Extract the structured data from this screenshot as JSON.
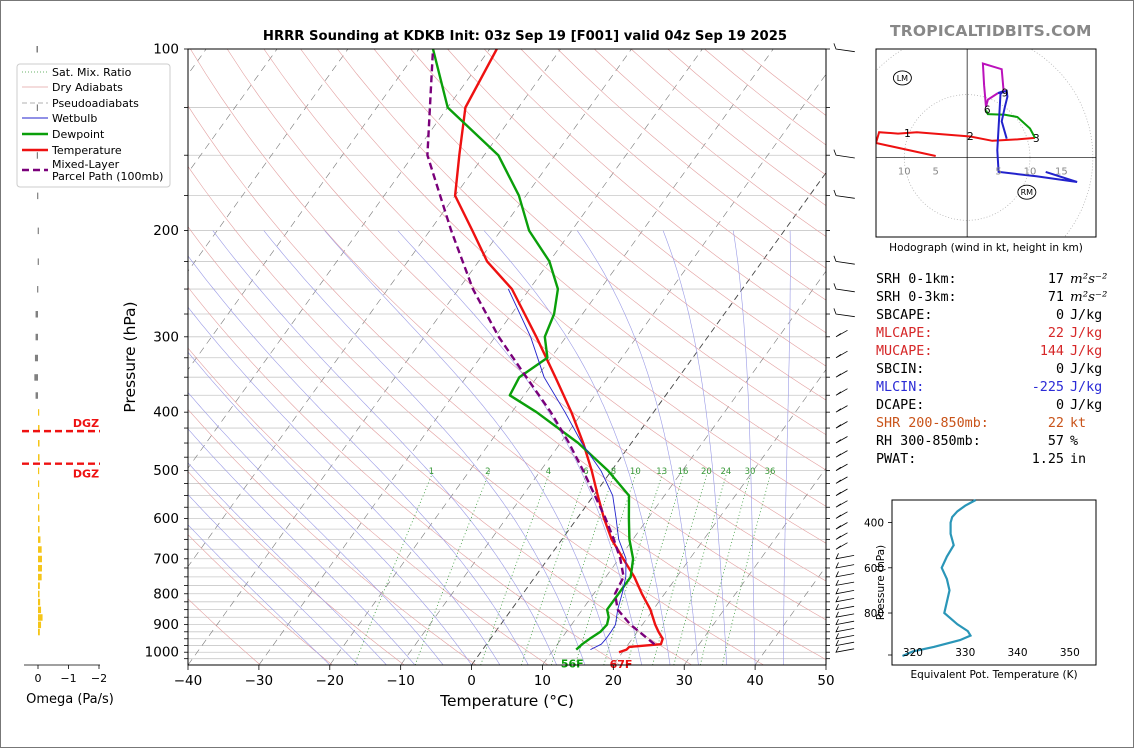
{
  "brand": "TROPICALTIDBITS.COM",
  "chart_data": [
    {
      "type": "line",
      "name": "skew-t",
      "title": "HRRR Sounding at KDKB Init: 03z Sep 19 [F001] valid 04z Sep 19 2025",
      "xlabel": "Temperature (°C)",
      "ylabel": "Pressure (hPa)",
      "xlim": [
        -40,
        50
      ],
      "ylim": [
        1050,
        100
      ],
      "skew": 0.72,
      "x_ticks": [
        -40,
        -30,
        -20,
        -10,
        0,
        10,
        20,
        30,
        40,
        50
      ],
      "x_tick_labels": [
        "−40",
        "−30",
        "−20",
        "−10",
        "0",
        "10",
        "20",
        "30",
        "40",
        "50"
      ],
      "y_ticks": [
        1000,
        900,
        800,
        700,
        600,
        500,
        400,
        300,
        200,
        100
      ],
      "grid_pressures": [
        100,
        125,
        150,
        175,
        200,
        225,
        250,
        275,
        300,
        325,
        350,
        375,
        400,
        425,
        450,
        475,
        500,
        525,
        550,
        575,
        600,
        625,
        650,
        675,
        700,
        725,
        750,
        775,
        800,
        825,
        850,
        875,
        900,
        925,
        950,
        975,
        1000,
        1025
      ],
      "mixing_ratio_labels": [
        "1",
        "2",
        "4",
        "6",
        "8",
        "10",
        "13",
        "16",
        "20",
        "24",
        "30",
        "36"
      ],
      "mixing_ratio_values": [
        1,
        2,
        4,
        6,
        8,
        10,
        13,
        16,
        20,
        24,
        30,
        36
      ],
      "legend": [
        "Sat. Mix. Ratio",
        "Dry Adiabats",
        "Pseudoadiabats",
        "Wetbulb",
        "Dewpoint",
        "Temperature",
        "Mixed-Layer\nParcel Path (100mb)"
      ],
      "legend_position": "top-left",
      "surface_labels": {
        "dewpoint": "56F",
        "temperature": "67F"
      },
      "series": [
        {
          "name": "Temperature",
          "color": "#ee1111",
          "points": [
            [
              1000,
              19.5
            ],
            [
              990,
              20.3
            ],
            [
              980,
              20.4
            ],
            [
              970,
              24.6
            ],
            [
              950,
              24.3
            ],
            [
              925,
              23.0
            ],
            [
              900,
              21.8
            ],
            [
              850,
              19.6
            ],
            [
              800,
              16.8
            ],
            [
              750,
              14.0
            ],
            [
              700,
              10.6
            ],
            [
              650,
              7.0
            ],
            [
              600,
              3.8
            ],
            [
              550,
              0.6
            ],
            [
              500,
              -2.8
            ],
            [
              450,
              -6.8
            ],
            [
              400,
              -11.6
            ],
            [
              350,
              -17.4
            ],
            [
              300,
              -24.2
            ],
            [
              250,
              -32.5
            ],
            [
              225,
              -38.8
            ],
            [
              200,
              -44.0
            ],
            [
              175,
              -50.0
            ],
            [
              150,
              -53.5
            ],
            [
              125,
              -57.5
            ],
            [
              100,
              -59.0
            ]
          ]
        },
        {
          "name": "Dewpoint",
          "color": "#0a9f0a",
          "points": [
            [
              990,
              13.2
            ],
            [
              970,
              13.5
            ],
            [
              950,
              14.0
            ],
            [
              925,
              14.8
            ],
            [
              900,
              15.0
            ],
            [
              875,
              14.5
            ],
            [
              850,
              13.5
            ],
            [
              800,
              13.5
            ],
            [
              750,
              13.5
            ],
            [
              700,
              12.0
            ],
            [
              650,
              9.5
            ],
            [
              620,
              8.2
            ],
            [
              600,
              7.3
            ],
            [
              550,
              5.0
            ],
            [
              500,
              -0.5
            ],
            [
              450,
              -7.5
            ],
            [
              400,
              -16.5
            ],
            [
              375,
              -22.0
            ],
            [
              350,
              -22.5
            ],
            [
              325,
              -20.5
            ],
            [
              300,
              -23.0
            ],
            [
              275,
              -24.0
            ],
            [
              250,
              -26.0
            ],
            [
              225,
              -30.0
            ],
            [
              200,
              -36.0
            ],
            [
              175,
              -41.0
            ],
            [
              150,
              -48.0
            ],
            [
              125,
              -60.0
            ],
            [
              100,
              -68.0
            ]
          ]
        },
        {
          "name": "Wetbulb",
          "color": "#2222cc",
          "points": [
            [
              990,
              15.2
            ],
            [
              970,
              16.2
            ],
            [
              950,
              16.3
            ],
            [
              925,
              16.3
            ],
            [
              900,
              16.2
            ],
            [
              850,
              15.0
            ],
            [
              800,
              14.0
            ],
            [
              750,
              12.8
            ],
            [
              700,
              11.0
            ],
            [
              650,
              8.0
            ],
            [
              600,
              5.5
            ],
            [
              550,
              2.7
            ],
            [
              500,
              -1.5
            ],
            [
              450,
              -7.0
            ],
            [
              400,
              -12.5
            ],
            [
              350,
              -19.0
            ],
            [
              300,
              -25.0
            ],
            [
              250,
              -33.0
            ]
          ]
        },
        {
          "name": "Mixed-Layer Parcel Path (100mb)",
          "color": "#7a007a",
          "dashed": true,
          "points": [
            [
              970,
              23.7
            ],
            [
              950,
              22.2
            ],
            [
              925,
              20.3
            ],
            [
              900,
              18.3
            ],
            [
              850,
              15.0
            ],
            [
              800,
              13.0
            ],
            [
              750,
              12.5
            ],
            [
              700,
              10.2
            ],
            [
              650,
              7.3
            ],
            [
              600,
              4.0
            ],
            [
              550,
              0.2
            ],
            [
              500,
              -4.0
            ],
            [
              450,
              -8.8
            ],
            [
              400,
              -14.5
            ],
            [
              350,
              -21.5
            ],
            [
              300,
              -29.5
            ],
            [
              250,
              -38.0
            ],
            [
              200,
              -47.0
            ],
            [
              150,
              -58.0
            ],
            [
              100,
              -68.0
            ]
          ]
        }
      ]
    },
    {
      "type": "bar",
      "name": "omega",
      "xlabel": "Omega (Pa/s)",
      "x_ticks": [
        0,
        -1,
        -2
      ],
      "x_tick_labels": [
        "0",
        "−1",
        "−2"
      ],
      "dgz_label": "DGZ",
      "dgz_pressures": [
        430,
        487
      ],
      "bars": [
        {
          "p": 100,
          "v": 0.05
        },
        {
          "p": 125,
          "v": 0.04
        },
        {
          "p": 150,
          "v": 0.04
        },
        {
          "p": 175,
          "v": 0.03
        },
        {
          "p": 200,
          "v": 0.01
        },
        {
          "p": 225,
          "v": 0.01
        },
        {
          "p": 250,
          "v": 0.03
        },
        {
          "p": 275,
          "v": 0.08
        },
        {
          "p": 300,
          "v": 0.08
        },
        {
          "p": 325,
          "v": 0.1
        },
        {
          "p": 350,
          "v": 0.12
        },
        {
          "p": 375,
          "v": 0.08
        },
        {
          "p": 400,
          "v": -0.04
        },
        {
          "p": 425,
          "v": -0.05
        },
        {
          "p": 450,
          "v": -0.05
        },
        {
          "p": 475,
          "v": -0.05
        },
        {
          "p": 500,
          "v": -0.03
        },
        {
          "p": 525,
          "v": -0.01
        },
        {
          "p": 550,
          "v": -0.01
        },
        {
          "p": 575,
          "v": -0.03
        },
        {
          "p": 600,
          "v": -0.05
        },
        {
          "p": 625,
          "v": -0.05
        },
        {
          "p": 650,
          "v": -0.08
        },
        {
          "p": 675,
          "v": -0.12
        },
        {
          "p": 700,
          "v": -0.13
        },
        {
          "p": 725,
          "v": -0.13
        },
        {
          "p": 750,
          "v": -0.12
        },
        {
          "p": 775,
          "v": -0.06
        },
        {
          "p": 800,
          "v": -0.05
        },
        {
          "p": 825,
          "v": -0.07
        },
        {
          "p": 850,
          "v": -0.1
        },
        {
          "p": 875,
          "v": -0.15
        },
        {
          "p": 900,
          "v": -0.1
        },
        {
          "p": 925,
          "v": -0.06
        }
      ]
    },
    {
      "type": "line",
      "name": "hodograph",
      "xlabel": "Hodograph (wind in kt, height in km)",
      "x_tick_labels": [
        "10",
        "5",
        "5",
        "10",
        "15"
      ],
      "x_ticks": [
        -10,
        -5,
        5,
        10,
        15
      ],
      "xlim": [
        -14.5,
        20.5
      ],
      "ylim": [
        -11,
        15
      ],
      "rings": [
        10,
        20,
        30
      ],
      "height_labels": [
        {
          "km": "1",
          "u": -9.5,
          "v": 3.4
        },
        {
          "km": "2",
          "u": 0.5,
          "v": 3.0
        },
        {
          "km": "3",
          "u": 11.0,
          "v": 2.7
        },
        {
          "km": "6",
          "u": 3.2,
          "v": 6.6
        },
        {
          "km": "9",
          "u": 6.0,
          "v": 9.0
        }
      ],
      "storm_markers": [
        {
          "label": "LM",
          "u": -10.3,
          "v": 11.0
        },
        {
          "label": "RM",
          "u": 9.5,
          "v": -4.8
        }
      ],
      "segments": [
        {
          "color": "#ee1111",
          "points": [
            [
              -5,
              0.2
            ],
            [
              -14.5,
              2.0
            ],
            [
              -14.0,
              3.5
            ],
            [
              -11.0,
              3.3
            ],
            [
              -8.0,
              3.5
            ],
            [
              -4.0,
              3.2
            ],
            [
              0.5,
              2.9
            ],
            [
              4.0,
              2.3
            ],
            [
              8.0,
              2.5
            ],
            [
              10.8,
              2.7
            ]
          ]
        },
        {
          "color": "#0a9f0a",
          "points": [
            [
              10.8,
              2.7
            ],
            [
              10.0,
              4.0
            ],
            [
              8.0,
              5.6
            ],
            [
              6.0,
              5.9
            ],
            [
              3.3,
              6.0
            ],
            [
              3.0,
              6.5
            ]
          ]
        },
        {
          "color": "#2222cc",
          "points": [
            [
              6.3,
              2.6
            ],
            [
              5.5,
              5.0
            ],
            [
              6.0,
              7.0
            ],
            [
              6.4,
              8.4
            ],
            [
              6.3,
              9.2
            ],
            [
              4.9,
              8.9
            ],
            [
              5.9,
              9.2
            ],
            [
              5.3,
              8.8
            ],
            [
              4.8,
              1.0
            ],
            [
              5.0,
              -2.0
            ],
            [
              8.0,
              -2.3
            ],
            [
              11.0,
              -2.6
            ],
            [
              17.5,
              -3.4
            ],
            [
              12.5,
              -2.0
            ]
          ]
        },
        {
          "color": "#bb11bb",
          "points": [
            [
              4.9,
              8.9
            ],
            [
              3.3,
              8.0
            ],
            [
              3.0,
              7.0
            ],
            [
              2.7,
              10.0
            ],
            [
              2.5,
              13.0
            ],
            [
              5.5,
              12.2
            ],
            [
              5.8,
              9.2
            ]
          ]
        }
      ]
    },
    {
      "type": "line",
      "name": "theta-e",
      "xlabel": "Equivalent Pot. Temperature (K)",
      "ylabel": "Pressure (hPa)",
      "xlim": [
        316,
        355
      ],
      "ylim": [
        1030,
        300
      ],
      "x_ticks": [
        320,
        330,
        340,
        350
      ],
      "x_tick_labels": [
        "320",
        "330",
        "340",
        "350"
      ],
      "y_ticks": [
        400,
        600,
        800
      ],
      "y_tick_labels": [
        "400",
        "600",
        "800"
      ],
      "color": "#2a96b8",
      "points": [
        [
          300,
          332.0
        ],
        [
          325,
          330.0
        ],
        [
          350,
          328.5
        ],
        [
          375,
          327.5
        ],
        [
          400,
          327.2
        ],
        [
          450,
          327.2
        ],
        [
          500,
          327.8
        ],
        [
          550,
          326.5
        ],
        [
          600,
          325.5
        ],
        [
          650,
          326.5
        ],
        [
          700,
          327.0
        ],
        [
          750,
          326.5
        ],
        [
          800,
          326.0
        ],
        [
          850,
          328.5
        ],
        [
          880,
          330.5
        ],
        [
          900,
          331.0
        ],
        [
          920,
          329.0
        ],
        [
          950,
          324.0
        ],
        [
          970,
          320.0
        ],
        [
          990,
          318.0
        ]
      ]
    }
  ],
  "stats": [
    {
      "label": "SRH 0-1km:",
      "value": "17",
      "unit": "m²s⁻²",
      "color": "#000000"
    },
    {
      "label": "SRH 0-3km:",
      "value": "71",
      "unit": "m²s⁻²",
      "color": "#000000"
    },
    {
      "label": "SBCAPE:",
      "value": "0",
      "unit": "J/kg",
      "color": "#000000"
    },
    {
      "label": "MLCAPE:",
      "value": "22",
      "unit": "J/kg",
      "color": "#d62728"
    },
    {
      "label": "MUCAPE:",
      "value": "144",
      "unit": "J/kg",
      "color": "#d62728"
    },
    {
      "label": "SBCIN:",
      "value": "0",
      "unit": "J/kg",
      "color": "#000000"
    },
    {
      "label": "MLCIN:",
      "value": "-225",
      "unit": "J/kg",
      "color": "#2b2bd6"
    },
    {
      "label": "DCAPE:",
      "value": "0",
      "unit": "J/kg",
      "color": "#000000"
    },
    {
      "label": "SHR 200-850mb:",
      "value": "22",
      "unit": "kt",
      "color": "#c9541a"
    },
    {
      "label": "RH 300-850mb:",
      "value": "57",
      "unit": "%",
      "color": "#000000"
    },
    {
      "label": "PWAT:",
      "value": "1.25",
      "unit": "in",
      "color": "#000000"
    }
  ]
}
